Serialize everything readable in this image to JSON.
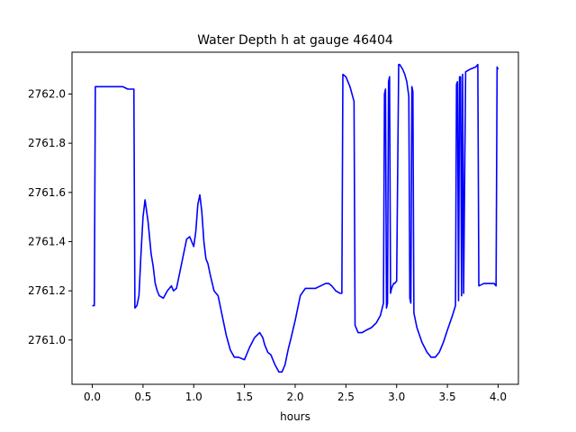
{
  "chart_data": {
    "type": "line",
    "title": "Water Depth h at gauge 46404",
    "xlabel": "hours",
    "ylabel": "",
    "xlim": [
      -0.2,
      4.2
    ],
    "ylim": [
      2760.82,
      2762.17
    ],
    "grid": false,
    "xticks": [
      0.0,
      0.5,
      1.0,
      1.5,
      2.0,
      2.5,
      3.0,
      3.5,
      4.0
    ],
    "xtick_labels": [
      "0.0",
      "0.5",
      "1.0",
      "1.5",
      "2.0",
      "2.5",
      "3.0",
      "3.5",
      "4.0"
    ],
    "yticks": [
      2761.0,
      2761.2,
      2761.4,
      2761.6,
      2761.8,
      2762.0
    ],
    "ytick_labels": [
      "2761.0",
      "2761.2",
      "2761.4",
      "2761.6",
      "2761.8",
      "2762.0"
    ],
    "series": [
      {
        "color": "#0000ff",
        "x": [
          0.0,
          0.02,
          0.03,
          0.1,
          0.2,
          0.3,
          0.35,
          0.41,
          0.42,
          0.44,
          0.46,
          0.48,
          0.5,
          0.52,
          0.55,
          0.58,
          0.6,
          0.62,
          0.64,
          0.66,
          0.7,
          0.74,
          0.78,
          0.8,
          0.83,
          0.86,
          0.9,
          0.93,
          0.96,
          1.0,
          1.02,
          1.04,
          1.06,
          1.08,
          1.1,
          1.12,
          1.14,
          1.16,
          1.2,
          1.24,
          1.27,
          1.32,
          1.36,
          1.4,
          1.44,
          1.5,
          1.55,
          1.6,
          1.65,
          1.68,
          1.7,
          1.73,
          1.76,
          1.8,
          1.84,
          1.87,
          1.9,
          1.93,
          1.96,
          2.0,
          2.05,
          2.1,
          2.15,
          2.2,
          2.25,
          2.3,
          2.33,
          2.36,
          2.4,
          2.44,
          2.46,
          2.47,
          2.5,
          2.54,
          2.58,
          2.59,
          2.62,
          2.66,
          2.7,
          2.75,
          2.8,
          2.84,
          2.87,
          2.88,
          2.89,
          2.9,
          2.91,
          2.92,
          2.93,
          2.94,
          2.95,
          2.96,
          2.97,
          2.98,
          3.0,
          3.02,
          3.03,
          3.06,
          3.08,
          3.1,
          3.12,
          3.13,
          3.14,
          3.15,
          3.16,
          3.17,
          3.2,
          3.25,
          3.3,
          3.34,
          3.38,
          3.42,
          3.46,
          3.5,
          3.55,
          3.58,
          3.59,
          3.6,
          3.61,
          3.62,
          3.63,
          3.64,
          3.65,
          3.66,
          3.68,
          3.72,
          3.78,
          3.8,
          3.81,
          3.86,
          3.92,
          3.96,
          3.98,
          3.99,
          4.0
        ],
        "y": [
          2761.14,
          2761.14,
          2762.03,
          2762.03,
          2762.03,
          2762.03,
          2762.02,
          2762.02,
          2761.13,
          2761.14,
          2761.18,
          2761.35,
          2761.5,
          2761.57,
          2761.48,
          2761.35,
          2761.3,
          2761.23,
          2761.2,
          2761.18,
          2761.17,
          2761.2,
          2761.22,
          2761.2,
          2761.21,
          2761.27,
          2761.35,
          2761.41,
          2761.42,
          2761.38,
          2761.44,
          2761.55,
          2761.59,
          2761.52,
          2761.4,
          2761.33,
          2761.31,
          2761.27,
          2761.2,
          2761.18,
          2761.12,
          2761.02,
          2760.96,
          2760.93,
          2760.93,
          2760.92,
          2760.97,
          2761.01,
          2761.03,
          2761.01,
          2760.98,
          2760.95,
          2760.94,
          2760.9,
          2760.87,
          2760.87,
          2760.9,
          2760.96,
          2761.01,
          2761.08,
          2761.18,
          2761.21,
          2761.21,
          2761.21,
          2761.22,
          2761.23,
          2761.23,
          2761.22,
          2761.2,
          2761.19,
          2761.19,
          2762.08,
          2762.07,
          2762.03,
          2761.97,
          2761.06,
          2761.03,
          2761.03,
          2761.04,
          2761.05,
          2761.07,
          2761.1,
          2761.15,
          2762.0,
          2762.02,
          2761.13,
          2761.15,
          2762.05,
          2762.07,
          2761.19,
          2761.21,
          2761.22,
          2761.23,
          2761.23,
          2761.24,
          2762.12,
          2762.12,
          2762.1,
          2762.08,
          2762.05,
          2761.99,
          2761.17,
          2761.15,
          2762.03,
          2762.01,
          2761.11,
          2761.05,
          2760.99,
          2760.95,
          2760.93,
          2760.93,
          2760.95,
          2760.99,
          2761.04,
          2761.1,
          2761.14,
          2762.04,
          2762.05,
          2761.16,
          2762.07,
          2762.07,
          2761.18,
          2762.08,
          2761.19,
          2762.09,
          2762.1,
          2762.11,
          2762.12,
          2761.22,
          2761.23,
          2761.23,
          2761.23,
          2761.22,
          2762.11,
          2762.1
        ]
      }
    ]
  }
}
